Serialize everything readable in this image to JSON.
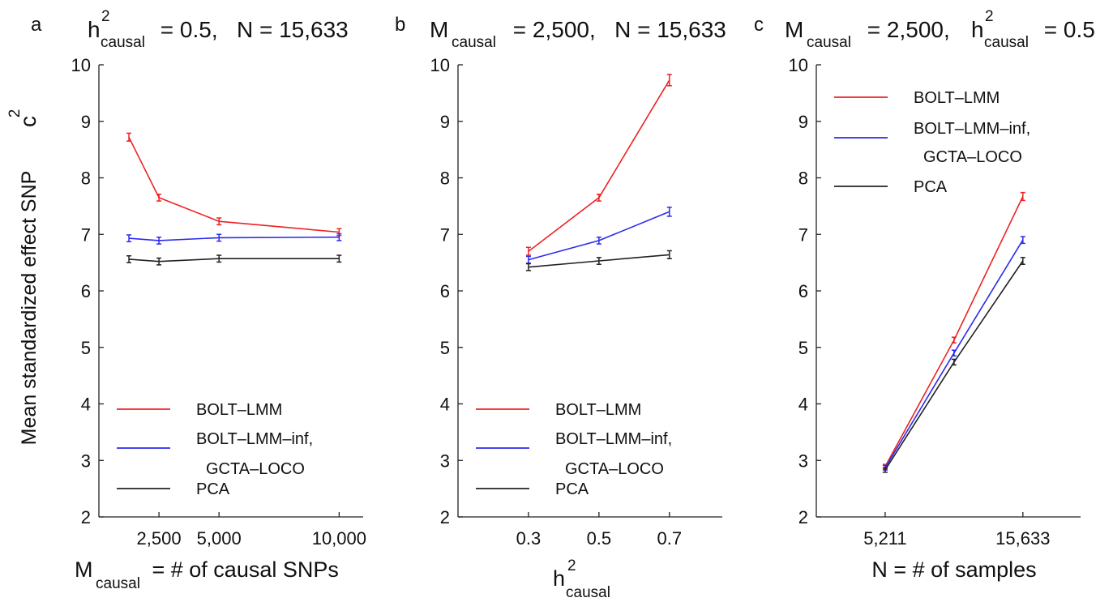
{
  "figure": {
    "ylabel": "Mean standardized effect SNP",
    "ylabel_chi": "c",
    "ylabel_chi_sup": "2"
  },
  "colors": {
    "bolt": "#ee2222",
    "inf": "#2b2bee",
    "pca": "#222222"
  },
  "legend_labels": [
    "BOLT–LMM",
    "BOLT–LMM–inf,",
    "GCTA–LOCO",
    "PCA"
  ],
  "chart_data": [
    {
      "type": "line",
      "panel": "a",
      "title_parts": {
        "h": "h",
        "sup": "2",
        "sub": "causal",
        "rest": " = 0.5,   N = 15,633"
      },
      "xlabel_parts": {
        "main": "M",
        "sub": "causal",
        "rest": " = # of causal SNPs"
      },
      "x": [
        1250,
        2500,
        5000,
        10000
      ],
      "xlim": [
        0,
        11000
      ],
      "xticks": [
        2500,
        5000,
        10000
      ],
      "xtick_labels": [
        "2,500",
        "5,000",
        "10,000"
      ],
      "ylim": [
        2,
        10
      ],
      "yticks": [
        2,
        3,
        4,
        5,
        6,
        7,
        8,
        9,
        10
      ],
      "ytick_labels": [
        "2",
        "3",
        "4",
        "5",
        "6",
        "7",
        "8",
        "9",
        "10"
      ],
      "series": [
        {
          "key": "bolt",
          "values": [
            8.72,
            7.65,
            7.23,
            7.04
          ],
          "err": [
            0.07,
            0.06,
            0.06,
            0.06
          ]
        },
        {
          "key": "inf",
          "values": [
            6.93,
            6.89,
            6.94,
            6.95
          ],
          "err": [
            0.06,
            0.06,
            0.06,
            0.06
          ]
        },
        {
          "key": "pca",
          "values": [
            6.56,
            6.52,
            6.57,
            6.57
          ],
          "err": [
            0.06,
            0.06,
            0.06,
            0.06
          ]
        }
      ],
      "legend": "bottom"
    },
    {
      "type": "line",
      "panel": "b",
      "title_parts": {
        "main": "M",
        "sub": "causal",
        "rest": " = 2,500,   N = 15,633"
      },
      "xlabel_parts": {
        "h": "h",
        "sup": "2",
        "sub": "causal"
      },
      "x": [
        0.3,
        0.5,
        0.7
      ],
      "xlim": [
        0.1,
        0.85
      ],
      "xticks": [
        0.3,
        0.5,
        0.7
      ],
      "xtick_labels": [
        "0.3",
        "0.5",
        "0.7"
      ],
      "ylim": [
        2,
        10
      ],
      "yticks": [
        2,
        3,
        4,
        5,
        6,
        7,
        8,
        9,
        10
      ],
      "ytick_labels": [
        "2",
        "3",
        "4",
        "5",
        "6",
        "7",
        "8",
        "9",
        "10"
      ],
      "series": [
        {
          "key": "bolt",
          "values": [
            6.7,
            7.65,
            9.73
          ],
          "err": [
            0.07,
            0.06,
            0.1
          ]
        },
        {
          "key": "inf",
          "values": [
            6.55,
            6.89,
            7.4
          ],
          "err": [
            0.06,
            0.06,
            0.08
          ]
        },
        {
          "key": "pca",
          "values": [
            6.42,
            6.53,
            6.64
          ],
          "err": [
            0.06,
            0.06,
            0.07
          ]
        }
      ],
      "legend": "bottom"
    },
    {
      "type": "line",
      "panel": "c",
      "title_parts": {
        "main": "M",
        "sub": "causal",
        "rest": " = 2,500,   ",
        "h": "h",
        "sup": "2",
        "sub2": "causal",
        "rest2": " = 0.5"
      },
      "xlabel_parts": {
        "main": "N = # of samples"
      },
      "x": [
        5211,
        10422,
        15633
      ],
      "xlim": [
        0,
        20000
      ],
      "xticks": [
        5211,
        15633
      ],
      "xtick_labels": [
        "5,211",
        "15,633"
      ],
      "ylim": [
        2,
        10
      ],
      "yticks": [
        2,
        3,
        4,
        5,
        6,
        7,
        8,
        9,
        10
      ],
      "ytick_labels": [
        "2",
        "3",
        "4",
        "5",
        "6",
        "7",
        "8",
        "9",
        "10"
      ],
      "series": [
        {
          "key": "bolt",
          "values": [
            2.89,
            5.13,
            7.67
          ],
          "err": [
            0.04,
            0.05,
            0.07
          ]
        },
        {
          "key": "inf",
          "values": [
            2.87,
            4.9,
            6.9
          ],
          "err": [
            0.04,
            0.05,
            0.06
          ]
        },
        {
          "key": "pca",
          "values": [
            2.83,
            4.74,
            6.53
          ],
          "err": [
            0.04,
            0.05,
            0.06
          ]
        }
      ],
      "legend": "top"
    }
  ]
}
